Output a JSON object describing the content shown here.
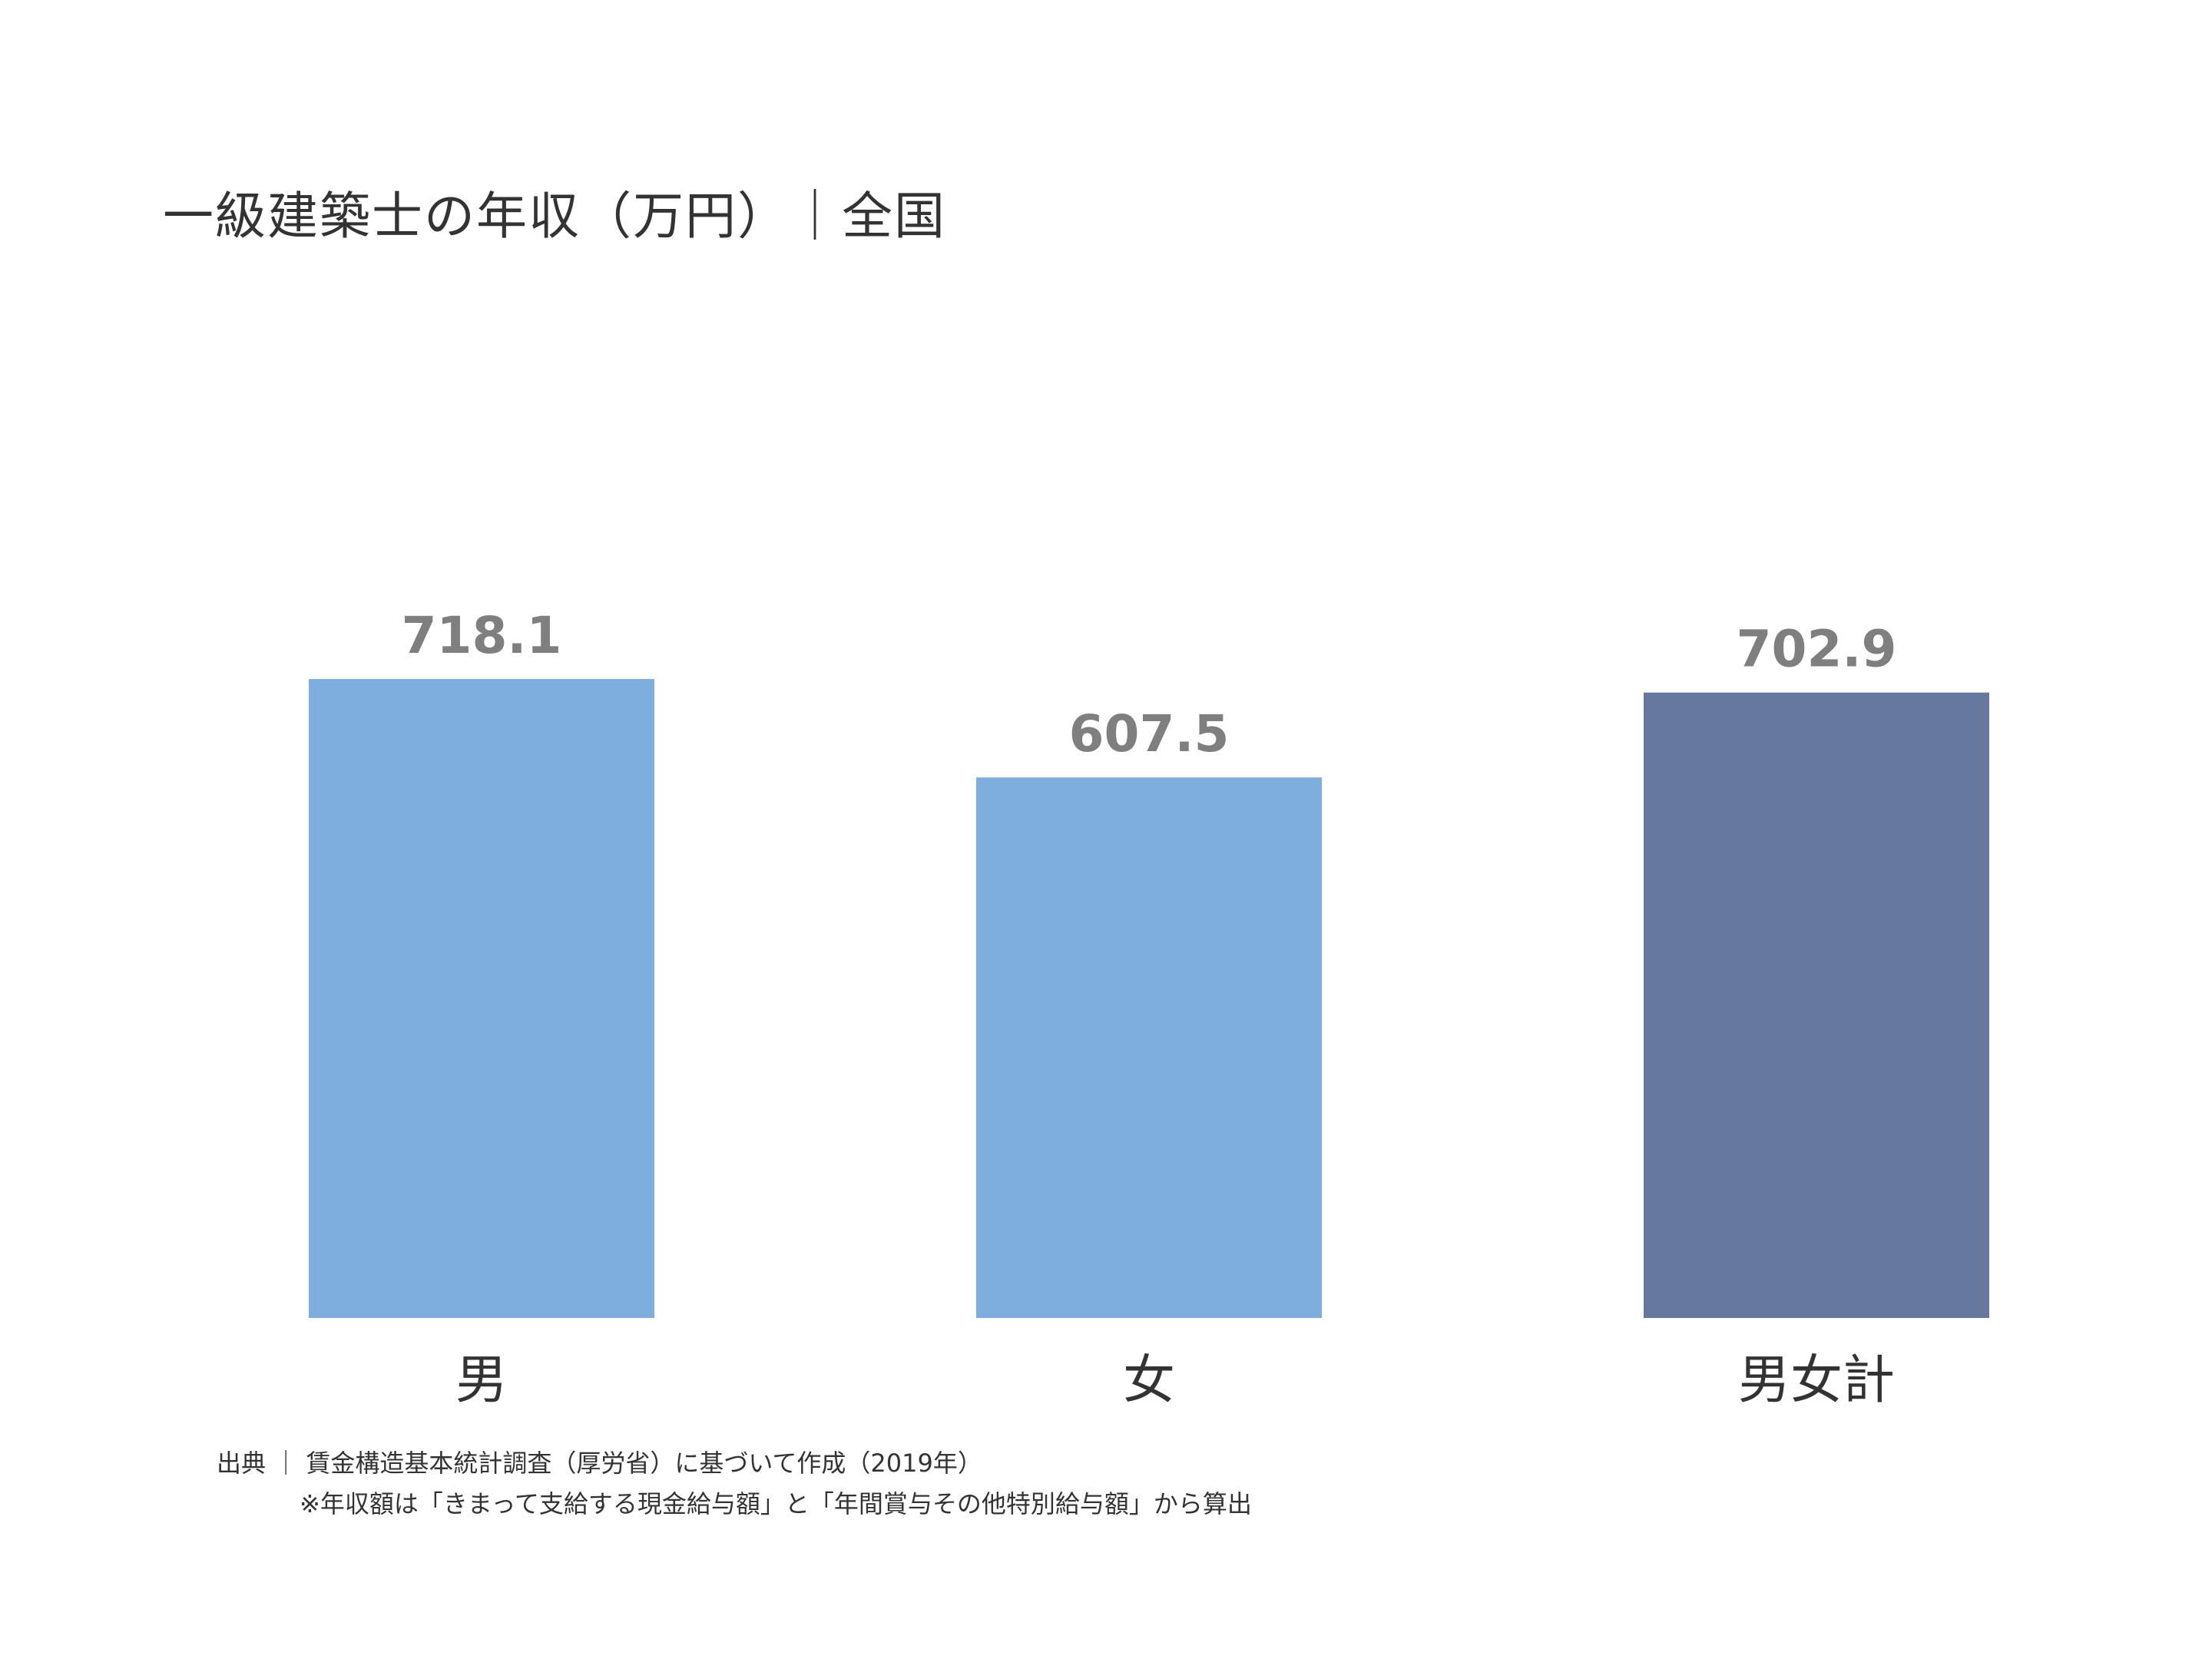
{
  "chart_data": {
    "type": "bar",
    "title": "一級建築士の年収（万円）｜全国",
    "categories": [
      "男",
      "女",
      "男女計"
    ],
    "values": [
      718.1,
      607.5,
      702.9
    ],
    "value_labels": [
      "718.1",
      "607.5",
      "702.9"
    ],
    "bar_colors": [
      "#7eaedd",
      "#7eaedd",
      "#67789f"
    ],
    "ylim": [
      0,
      800
    ],
    "grid": false,
    "legend": "none",
    "xlabel": "",
    "ylabel": ""
  },
  "notes": {
    "source": "出典 ｜ 賃金構造基本統計調査（厚労省）に基づいて作成（2019年）",
    "calculation": "※年収額は「きまって支給する現金給与額」と「年間賞与その他特別給与額」から算出"
  },
  "colors": {
    "value_label": "#7f7f7f",
    "text": "#333333"
  }
}
